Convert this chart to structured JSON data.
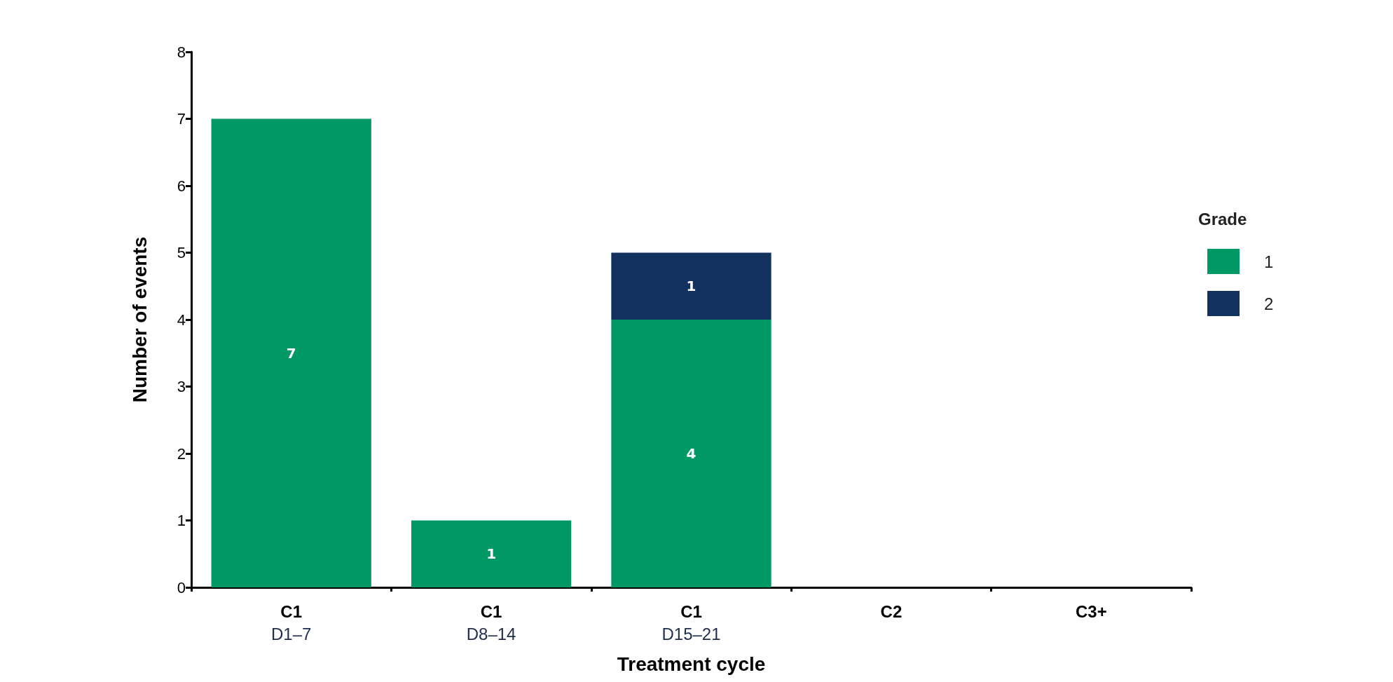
{
  "chart_data": {
    "type": "bar",
    "stacked": true,
    "xlabel": "Treatment cycle",
    "ylabel": "Number of events",
    "legend_title": "Grade",
    "legend": "right",
    "grid": false,
    "categories": [
      "C1\nD1–7",
      "C1\nD8–14",
      "C1\nD15–21",
      "C2",
      "C3+"
    ],
    "ylim": [
      0,
      8
    ],
    "yticks": [
      0,
      1,
      2,
      3,
      4,
      5,
      6,
      7,
      8
    ],
    "series": [
      {
        "name": "1",
        "color": "#009966",
        "values": [
          7,
          1,
          4,
          0,
          0
        ],
        "value_labels": [
          "7",
          "1",
          "4",
          null,
          null
        ]
      },
      {
        "name": "2",
        "color": "#13315f",
        "values": [
          0,
          0,
          1,
          0,
          0
        ],
        "value_labels": [
          null,
          null,
          "1",
          null,
          null
        ]
      }
    ]
  }
}
